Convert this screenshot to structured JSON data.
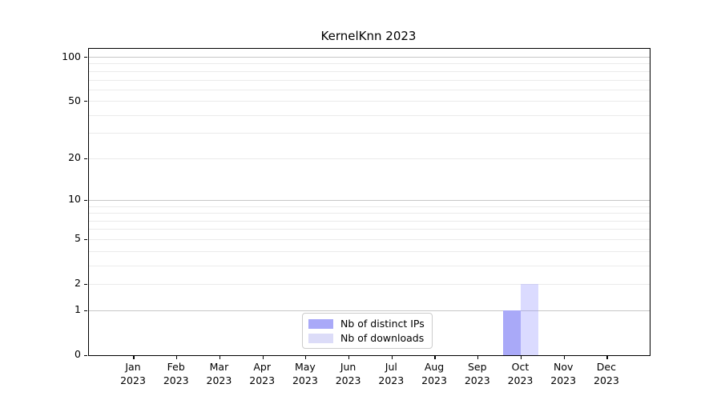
{
  "figure": {
    "title": "KernelKnn 2023",
    "background_color": "#ffffff"
  },
  "chart_data": {
    "type": "bar",
    "title": "KernelKnn 2023",
    "scale": "log1p",
    "grid": "horizontal",
    "categories": [
      "Jan",
      "Feb",
      "Mar",
      "Apr",
      "May",
      "Jun",
      "Jul",
      "Aug",
      "Sep",
      "Oct",
      "Nov",
      "Dec"
    ],
    "category_year": "2023",
    "series": [
      {
        "name": "Nb of distinct IPs",
        "color": "#a9a9f8",
        "values": [
          0,
          0,
          0,
          0,
          0,
          0,
          0,
          0,
          0,
          1,
          0,
          0
        ]
      },
      {
        "name": "Nb of downloads",
        "color": "#dcdcf8",
        "color_rgba": "rgba(153,153,255,0.35)",
        "values": [
          0,
          0,
          0,
          0,
          0,
          0,
          0,
          0,
          0,
          2,
          0,
          0
        ]
      }
    ],
    "xlabel": "",
    "ylabel": "",
    "ylim": [
      0,
      115
    ],
    "yticks_major": [
      0,
      1,
      2,
      5,
      10,
      20,
      50,
      100
    ],
    "yticks_minor": [
      3,
      4,
      6,
      7,
      8,
      9,
      30,
      40,
      60,
      70,
      80,
      90
    ],
    "grid_decades": [
      1,
      10,
      100
    ],
    "grid_decade_color": "#c6c6c6",
    "grid_minor_color": "#ebebeb",
    "legend_position": "lower center",
    "legend": [
      {
        "label": "Nb of distinct IPs"
      },
      {
        "label": "Nb of downloads"
      }
    ]
  }
}
